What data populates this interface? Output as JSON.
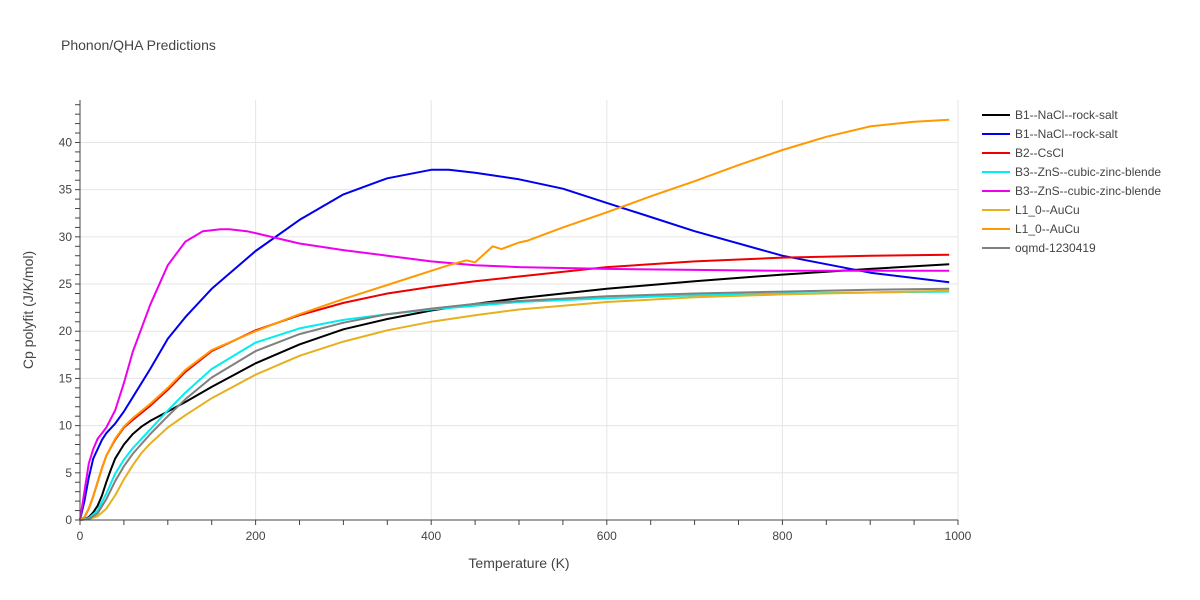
{
  "chart_data": {
    "type": "line",
    "title": "Phonon/QHA Predictions",
    "xlabel": "Temperature (K)",
    "ylabel": "Cp polyfit (J/K/mol)",
    "xlim": [
      0,
      1000
    ],
    "ylim": [
      0,
      44.5
    ],
    "xticks": [
      0,
      200,
      400,
      600,
      800,
      1000
    ],
    "yticks": [
      0,
      5,
      10,
      15,
      20,
      25,
      30,
      35,
      40
    ],
    "grid": true,
    "legend_position": "right",
    "series": [
      {
        "name": "B1--NaCl--rock-salt",
        "color": "#000000",
        "x": [
          0,
          5,
          10,
          15,
          20,
          25,
          30,
          35,
          40,
          50,
          60,
          70,
          80,
          100,
          120,
          150,
          200,
          250,
          300,
          350,
          400,
          450,
          500,
          600,
          700,
          800,
          900,
          990
        ],
        "y": [
          0,
          0.1,
          0.3,
          0.8,
          1.5,
          2.6,
          4,
          5.3,
          6.5,
          8,
          9.1,
          9.9,
          10.5,
          11.5,
          12.5,
          14.1,
          16.6,
          18.6,
          20.2,
          21.3,
          22.2,
          22.9,
          23.5,
          24.5,
          25.3,
          26,
          26.6,
          27.1
        ]
      },
      {
        "name": "B1--NaCl--rock-salt",
        "color": "#0000ee",
        "x": [
          0,
          5,
          10,
          15,
          20,
          25,
          30,
          40,
          50,
          60,
          80,
          100,
          120,
          150,
          200,
          250,
          300,
          350,
          400,
          420,
          450,
          500,
          550,
          600,
          650,
          700,
          800,
          900,
          990
        ],
        "y": [
          0,
          2,
          4.5,
          6.5,
          7.5,
          8.5,
          9.2,
          10.2,
          11.5,
          13,
          16,
          19.2,
          21.5,
          24.5,
          28.5,
          31.8,
          34.5,
          36.2,
          37.1,
          37.1,
          36.8,
          36.1,
          35.1,
          33.6,
          32.1,
          30.6,
          28,
          26.2,
          25.2
        ]
      },
      {
        "name": "B2--CsCl",
        "color": "#ee0000",
        "x": [
          0,
          5,
          10,
          15,
          20,
          25,
          30,
          40,
          50,
          60,
          80,
          100,
          120,
          150,
          200,
          250,
          300,
          350,
          400,
          450,
          500,
          600,
          700,
          800,
          900,
          990
        ],
        "y": [
          0,
          0.3,
          1.2,
          2.5,
          4,
          5.5,
          6.8,
          8.5,
          9.8,
          10.6,
          12.1,
          13.8,
          15.7,
          17.9,
          20.1,
          21.7,
          23,
          24,
          24.7,
          25.3,
          25.8,
          26.8,
          27.4,
          27.8,
          28,
          28.1
        ]
      },
      {
        "name": "B3--ZnS--cubic-zinc-blende",
        "color": "#00eeee",
        "x": [
          0,
          10,
          20,
          30,
          40,
          50,
          60,
          80,
          100,
          120,
          150,
          200,
          250,
          300,
          350,
          400,
          450,
          500,
          600,
          700,
          800,
          900,
          990
        ],
        "y": [
          0,
          0.2,
          1,
          2.8,
          4.9,
          6.4,
          7.6,
          9.6,
          11.6,
          13.5,
          16,
          18.8,
          20.3,
          21.2,
          21.8,
          22.3,
          22.7,
          23.1,
          23.5,
          23.8,
          24,
          24.1,
          24.2
        ]
      },
      {
        "name": "B3--ZnS--cubic-zinc-blende",
        "color": "#ee00ee",
        "x": [
          0,
          5,
          10,
          15,
          20,
          25,
          30,
          40,
          50,
          60,
          80,
          100,
          120,
          140,
          160,
          170,
          190,
          200,
          250,
          300,
          350,
          400,
          450,
          500,
          600,
          700,
          800,
          900,
          990
        ],
        "y": [
          0,
          3,
          6,
          7.5,
          8.6,
          9.2,
          9.8,
          11.6,
          14.5,
          17.8,
          22.8,
          27,
          29.5,
          30.6,
          30.8,
          30.8,
          30.6,
          30.4,
          29.3,
          28.6,
          28,
          27.4,
          27,
          26.8,
          26.6,
          26.5,
          26.4,
          26.4,
          26.4
        ]
      },
      {
        "name": "L1_0--AuCu",
        "color": "#e6b01e",
        "x": [
          0,
          10,
          20,
          30,
          40,
          50,
          60,
          70,
          80,
          100,
          120,
          150,
          200,
          250,
          300,
          350,
          400,
          450,
          500,
          600,
          700,
          800,
          900,
          990
        ],
        "y": [
          0,
          0.1,
          0.4,
          1.2,
          2.6,
          4.3,
          5.8,
          7.1,
          8.1,
          9.8,
          11.1,
          12.9,
          15.4,
          17.4,
          18.9,
          20.1,
          21,
          21.7,
          22.3,
          23.1,
          23.6,
          23.9,
          24.1,
          24.3
        ]
      },
      {
        "name": "L1_0--AuCu",
        "color": "#ff9900",
        "x": [
          0,
          5,
          10,
          15,
          20,
          25,
          30,
          40,
          50,
          60,
          80,
          100,
          120,
          150,
          200,
          250,
          300,
          350,
          400,
          420,
          440,
          450,
          470,
          480,
          500,
          510,
          550,
          600,
          650,
          700,
          750,
          800,
          850,
          900,
          950,
          990
        ],
        "y": [
          0,
          0.3,
          1.2,
          2.5,
          4,
          5.5,
          6.8,
          8.6,
          9.9,
          10.8,
          12.3,
          14,
          15.9,
          18,
          20,
          21.8,
          23.4,
          24.9,
          26.4,
          27,
          27.5,
          27.3,
          29,
          28.7,
          29.4,
          29.6,
          31,
          32.6,
          34.3,
          35.9,
          37.6,
          39.2,
          40.6,
          41.7,
          42.2,
          42.4
        ]
      },
      {
        "name": "oqmd-1230419",
        "color": "#808080",
        "x": [
          0,
          10,
          20,
          30,
          40,
          50,
          60,
          80,
          100,
          120,
          150,
          200,
          250,
          300,
          350,
          400,
          450,
          500,
          600,
          700,
          800,
          900,
          990
        ],
        "y": [
          0,
          0.1,
          0.7,
          2.2,
          4.1,
          5.7,
          7,
          9.1,
          11,
          12.8,
          15.1,
          17.9,
          19.7,
          20.9,
          21.8,
          22.4,
          22.9,
          23.2,
          23.7,
          24,
          24.2,
          24.4,
          24.5
        ]
      }
    ]
  }
}
